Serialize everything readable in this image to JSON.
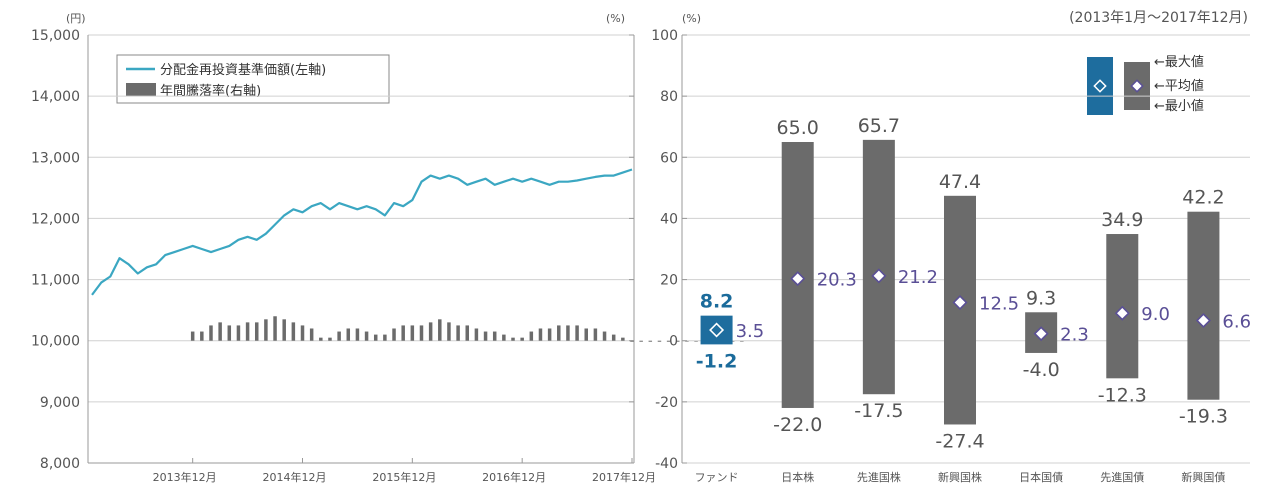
{
  "chart_data": [
    {
      "type": "line",
      "title": "",
      "y_unit_left": "(円)",
      "y_unit_right": "(%)",
      "ylim_left": [
        8000,
        15000
      ],
      "ylim_right": [
        -40,
        100
      ],
      "yticks_left": [
        "8,000",
        "9,000",
        "10,000",
        "11,000",
        "12,000",
        "13,000",
        "14,000",
        "15,000"
      ],
      "xticks": [
        "2013年12月",
        "2014年12月",
        "2015年12月",
        "2016年12月",
        "2017年12月"
      ],
      "legend": {
        "position": "top-left",
        "items": [
          "分配金再投資基準価額(左軸)",
          "年間騰落率(右軸)"
        ]
      },
      "series": [
        {
          "name": "分配金再投資基準価額(左軸)",
          "axis": "left",
          "color": "#3ba7c2",
          "points": [
            [
              "2013-01",
              10750
            ],
            [
              "2013-02",
              10950
            ],
            [
              "2013-03",
              11050
            ],
            [
              "2013-04",
              11350
            ],
            [
              "2013-05",
              11250
            ],
            [
              "2013-06",
              11100
            ],
            [
              "2013-07",
              11200
            ],
            [
              "2013-08",
              11250
            ],
            [
              "2013-09",
              11400
            ],
            [
              "2013-10",
              11450
            ],
            [
              "2013-11",
              11500
            ],
            [
              "2013-12",
              11550
            ],
            [
              "2014-01",
              11500
            ],
            [
              "2014-02",
              11450
            ],
            [
              "2014-03",
              11500
            ],
            [
              "2014-04",
              11550
            ],
            [
              "2014-05",
              11650
            ],
            [
              "2014-06",
              11700
            ],
            [
              "2014-07",
              11650
            ],
            [
              "2014-08",
              11750
            ],
            [
              "2014-09",
              11900
            ],
            [
              "2014-10",
              12050
            ],
            [
              "2014-11",
              12150
            ],
            [
              "2014-12",
              12100
            ],
            [
              "2015-01",
              12200
            ],
            [
              "2015-02",
              12250
            ],
            [
              "2015-03",
              12150
            ],
            [
              "2015-04",
              12250
            ],
            [
              "2015-05",
              12200
            ],
            [
              "2015-06",
              12150
            ],
            [
              "2015-07",
              12200
            ],
            [
              "2015-08",
              12150
            ],
            [
              "2015-09",
              12050
            ],
            [
              "2015-10",
              12250
            ],
            [
              "2015-11",
              12200
            ],
            [
              "2015-12",
              12300
            ],
            [
              "2016-01",
              12600
            ],
            [
              "2016-02",
              12700
            ],
            [
              "2016-03",
              12650
            ],
            [
              "2016-04",
              12700
            ],
            [
              "2016-05",
              12650
            ],
            [
              "2016-06",
              12550
            ],
            [
              "2016-07",
              12600
            ],
            [
              "2016-08",
              12650
            ],
            [
              "2016-09",
              12550
            ],
            [
              "2016-10",
              12600
            ],
            [
              "2016-11",
              12650
            ],
            [
              "2016-12",
              12600
            ],
            [
              "2017-01",
              12650
            ],
            [
              "2017-02",
              12600
            ],
            [
              "2017-03",
              12550
            ],
            [
              "2017-04",
              12600
            ],
            [
              "2017-05",
              12600
            ],
            [
              "2017-06",
              12620
            ],
            [
              "2017-07",
              12650
            ],
            [
              "2017-08",
              12680
            ],
            [
              "2017-09",
              12700
            ],
            [
              "2017-10",
              12700
            ],
            [
              "2017-11",
              12750
            ],
            [
              "2017-12",
              12800
            ]
          ]
        },
        {
          "name": "年間騰落率(右軸)",
          "axis": "right",
          "type": "bar",
          "color": "#6b6b6b",
          "x_start": "2013-12",
          "values": [
            3,
            3,
            5,
            6,
            5,
            5,
            6,
            6,
            7,
            8,
            7,
            6,
            5,
            4,
            1,
            1,
            3,
            4,
            4,
            3,
            2,
            2,
            4,
            5,
            5,
            5,
            6,
            7,
            6,
            5,
            5,
            4,
            3,
            3,
            2,
            1,
            1,
            3,
            4,
            4,
            5,
            5,
            5,
            4,
            4,
            3,
            2,
            1,
            0,
            0,
            0,
            0,
            0,
            0,
            0,
            0,
            0,
            0,
            0,
            0,
            0
          ]
        }
      ]
    },
    {
      "type": "range-bar",
      "title": "(2013年1月～2017年12月)",
      "y_unit": "(%)",
      "ylim": [
        -40,
        100
      ],
      "yticks": [
        "-40",
        "-20",
        "0",
        "20",
        "40",
        "60",
        "80",
        "100"
      ],
      "categories": [
        "ファンド",
        "日本株",
        "先進国株",
        "新興国株",
        "日本国債",
        "先進国債",
        "新興国債"
      ],
      "max": [
        8.2,
        65.0,
        65.7,
        47.4,
        9.3,
        34.9,
        42.2
      ],
      "mean": [
        3.5,
        20.3,
        21.2,
        12.5,
        2.3,
        9.0,
        6.6
      ],
      "min": [
        -1.2,
        -22.0,
        -17.5,
        -27.4,
        -4.0,
        -12.3,
        -19.3
      ],
      "max_labels": [
        "8.2",
        "65.0",
        "65.7",
        "47.4",
        "9.3",
        "34.9",
        "42.2"
      ],
      "mean_labels": [
        "3.5",
        "20.3",
        "21.2",
        "12.5",
        "2.3",
        "9.0",
        "6.6"
      ],
      "min_labels": [
        "-1.2",
        "-22.0",
        "-17.5",
        "-27.4",
        "-4.0",
        "-12.3",
        "-19.3"
      ],
      "colors": {
        "fund": "#1e6d9e",
        "asset": "#6b6b6b",
        "mean_marker": "#5a4f96"
      },
      "legend": {
        "position": "top-right",
        "items": [
          "最大値",
          "平均値",
          "最小値"
        ]
      }
    }
  ]
}
